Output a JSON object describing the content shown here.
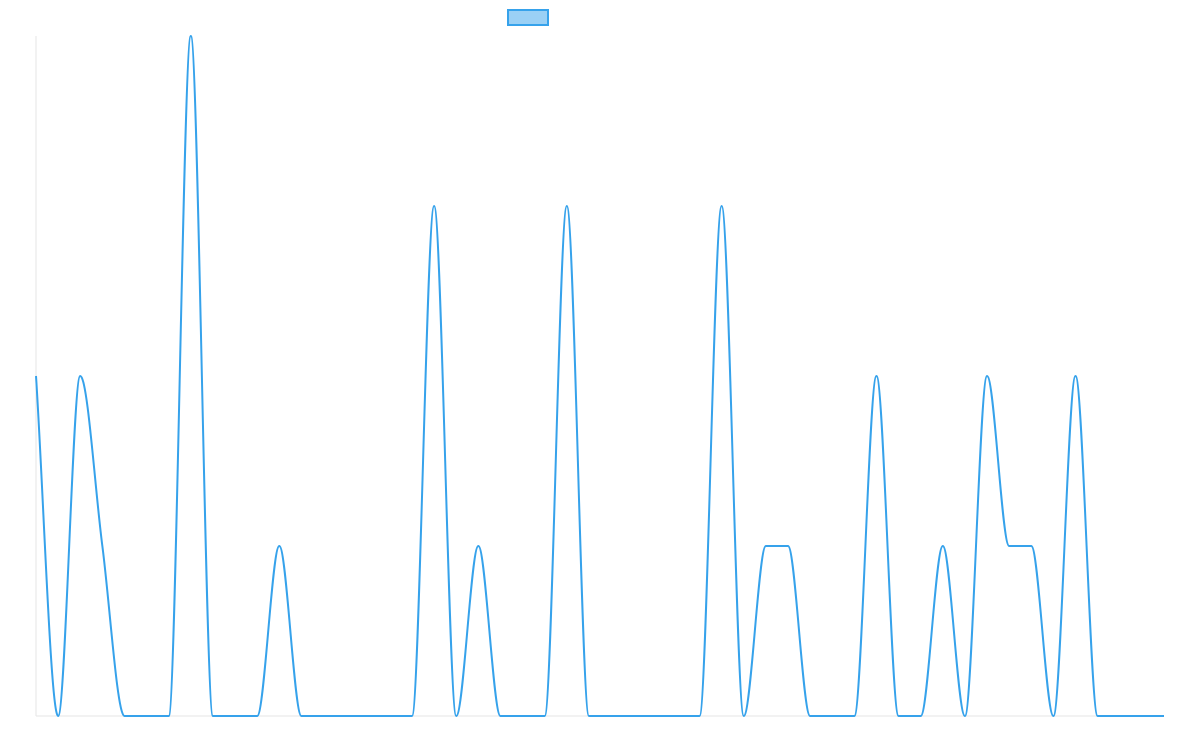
{
  "chart_data": {
    "type": "line",
    "title": "",
    "xlabel": "",
    "ylabel": "",
    "ylim": [
      0,
      4
    ],
    "grid": false,
    "legend_position": "top",
    "x": [
      0,
      1,
      2,
      3,
      4,
      5,
      6,
      7,
      8,
      9,
      10,
      11,
      12,
      13,
      14,
      15,
      16,
      17,
      18,
      19,
      20,
      21,
      22,
      23,
      24,
      25,
      26,
      27,
      28,
      29,
      30,
      31,
      32,
      33,
      34,
      35,
      36,
      37,
      38,
      39,
      40,
      41,
      42,
      43,
      44,
      45,
      46,
      47,
      48,
      49,
      50,
      51
    ],
    "series": [
      {
        "name": "",
        "color": "#36a2eb",
        "fill": "#9ad0f5",
        "values": [
          2,
          0,
          2,
          1,
          0,
          0,
          0,
          4,
          0,
          0,
          0,
          1,
          0,
          0,
          0,
          0,
          0,
          0,
          3,
          0,
          1,
          0,
          0,
          0,
          3,
          0,
          0,
          0,
          0,
          0,
          0,
          3,
          0,
          1,
          1,
          0,
          0,
          0,
          2,
          0,
          0,
          1,
          0,
          2,
          1,
          1,
          0,
          2,
          0,
          0,
          0,
          0
        ]
      }
    ]
  }
}
